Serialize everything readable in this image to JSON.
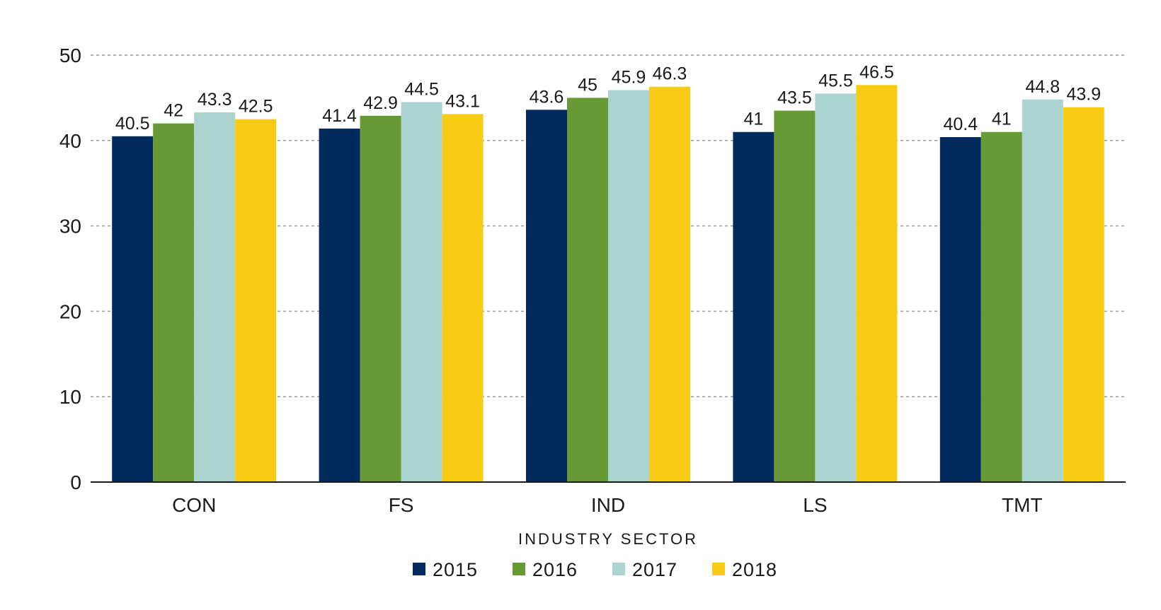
{
  "chart_data": {
    "type": "bar",
    "xlabel": "INDUSTRY SECTOR",
    "ylabel": "",
    "ylim": [
      0,
      50
    ],
    "yticks": [
      0,
      10,
      20,
      30,
      40,
      50
    ],
    "grid": true,
    "legend_position": "bottom",
    "categories": [
      "CON",
      "FS",
      "IND",
      "LS",
      "TMT"
    ],
    "series": [
      {
        "name": "2015",
        "color": "#002B5C",
        "values": [
          40.5,
          41.4,
          43.6,
          41,
          40.4
        ]
      },
      {
        "name": "2016",
        "color": "#679A35",
        "values": [
          42,
          42.9,
          45,
          43.5,
          41
        ]
      },
      {
        "name": "2017",
        "color": "#ABD3D0",
        "values": [
          43.3,
          44.5,
          45.9,
          45.5,
          44.8
        ]
      },
      {
        "name": "2018",
        "color": "#F8CC15",
        "values": [
          42.5,
          43.1,
          46.3,
          46.5,
          43.9
        ]
      }
    ]
  }
}
